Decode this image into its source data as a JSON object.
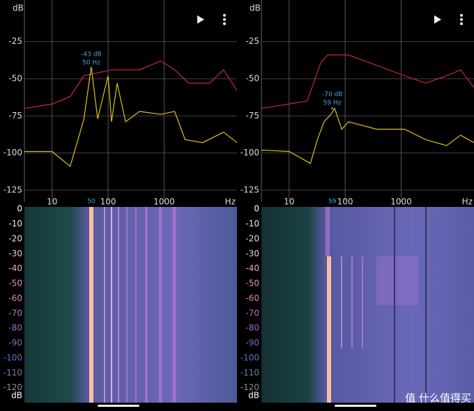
{
  "panels": [
    {
      "spectrum": {
        "type": "line",
        "y_label": "dB",
        "x_unit": "Hz",
        "log_x": true,
        "grid": true,
        "xlim": [
          3.2,
          20000
        ],
        "ylim": [
          -133,
          3
        ],
        "xticks": [
          10,
          100,
          1000
        ],
        "yticks": [
          -25,
          -50,
          -75,
          -100,
          -125
        ],
        "series": [
          {
            "color": "#c8264a",
            "x": [
              3.2,
              10,
              21,
              37,
              65,
              115,
              365,
              870,
              1540,
              2740,
              6500,
              11500,
              20000
            ],
            "values": [
              -70,
              -67,
              -62,
              -48,
              -46,
              -44,
              -44,
              -38,
              -44,
              -53,
              -53,
              -44,
              -58
            ]
          },
          {
            "color": "#e0c020",
            "x": [
              3.2,
              10,
              21,
              29,
              37,
              50,
              65,
              100,
              115,
              145,
              205,
              365,
              870,
              1540,
              2370,
              4870,
              11500,
              20000
            ],
            "values": [
              -99,
              -99,
              -109,
              -91,
              -77,
              -42,
              -77,
              -48,
              -79,
              -53,
              -79,
              -72,
              -74,
              -72,
              -91,
              -93,
              -86,
              -93
            ]
          }
        ],
        "peak": {
          "value": -43,
          "label": "-43 dB",
          "freq": 50,
          "freq_label": "50 Hz",
          "marker": "50"
        }
      },
      "spectrogram": {
        "y_label": "dB",
        "ylim": [
          1.5,
          -130
        ],
        "yticks": [
          0,
          -10,
          -20,
          -30,
          -40,
          -50,
          -60,
          -70,
          -80,
          -90,
          -100,
          -110,
          -120
        ],
        "tick_colors": [
          "#ffffff",
          "#f4e8f0",
          "#f0dce8",
          "#f2c4d8",
          "#f0a8c8",
          "#e890b8",
          "#e080c0",
          "#c070c8",
          "#a068c8",
          "#8868c8",
          "#5878c8",
          "#6080b8",
          "#8090a8"
        ]
      }
    },
    {
      "spectrum": {
        "type": "line",
        "y_label": "dB",
        "x_unit": "Hz",
        "log_x": true,
        "grid": true,
        "xlim": [
          3.2,
          20000
        ],
        "ylim": [
          -133,
          3
        ],
        "xticks": [
          10,
          100,
          1000
        ],
        "yticks": [
          -25,
          -50,
          -75,
          -100,
          -125
        ],
        "series": [
          {
            "color": "#c8264a",
            "x": [
              3.2,
              10,
              21,
              37,
              49,
              115,
              365,
              1150,
              2740,
              6500,
              11500,
              20000
            ],
            "values": [
              -70,
              -67,
              -65,
              -39,
              -34,
              -34,
              -41,
              -48,
              -53,
              -48,
              -44,
              -56
            ]
          },
          {
            "color": "#e0c020",
            "x": [
              3.2,
              10,
              24,
              32,
              42,
              56,
              65,
              87,
              115,
              365,
              1150,
              2740,
              6500,
              11500,
              20000
            ],
            "values": [
              -98,
              -99,
              -107,
              -91,
              -79,
              -74,
              -70,
              -84,
              -79,
              -84,
              -84,
              -91,
              -95,
              -88,
              -93
            ]
          }
        ],
        "peak": {
          "value": -70,
          "label": "-70 dB",
          "freq": 59,
          "freq_label": "59 Hz",
          "marker": "59"
        }
      },
      "spectrogram": {
        "y_label": "dB",
        "ylim": [
          1.5,
          -130
        ],
        "yticks": [
          0,
          -10,
          -20,
          -30,
          -40,
          -50,
          -60,
          -70,
          -80,
          -90,
          -100,
          -110,
          -120
        ],
        "tick_colors": [
          "#ffffff",
          "#f4e8f0",
          "#f0dce8",
          "#f2c4d8",
          "#f0a8c8",
          "#e890b8",
          "#e080c0",
          "#c070c8",
          "#a068c8",
          "#8868c8",
          "#5878c8",
          "#6080b8",
          "#8090a8"
        ]
      }
    }
  ],
  "watermark": "值 什么值得买"
}
